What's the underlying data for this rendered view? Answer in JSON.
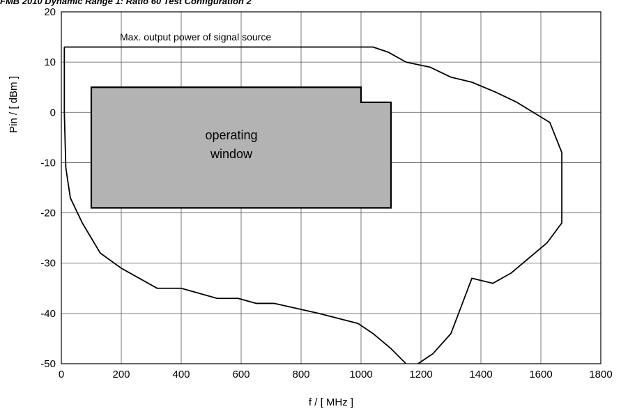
{
  "chart_data": {
    "type": "line",
    "title": "FMB 2010 Dynamic Range 1: Ratio 60 Test Configuration 2",
    "xlabel": "f / [ MHz ]",
    "ylabel": "Pin / [ dBm ]",
    "xlim": [
      0,
      1800
    ],
    "ylim": [
      -50,
      20
    ],
    "xticks": [
      "0",
      "200",
      "400",
      "600",
      "800",
      "1000",
      "1200",
      "1400",
      "1600",
      "1800"
    ],
    "yticks": [
      "20",
      "10",
      "0",
      "-10",
      "-20",
      "-30",
      "-40",
      "-50"
    ],
    "grid": true,
    "series": [
      {
        "name": "",
        "points": [
          [
            10,
            13
          ],
          [
            1040,
            13
          ],
          [
            1090,
            12
          ],
          [
            1150,
            10
          ],
          [
            1230,
            9
          ],
          [
            1300,
            7
          ],
          [
            1370,
            6
          ],
          [
            1450,
            4
          ],
          [
            1520,
            2
          ],
          [
            1630,
            -2
          ],
          [
            1670,
            -8
          ],
          [
            1670,
            -22
          ],
          [
            1620,
            -26
          ],
          [
            1560,
            -29
          ],
          [
            1500,
            -32
          ],
          [
            1440,
            -34
          ],
          [
            1370,
            -33
          ],
          [
            1300,
            -44
          ],
          [
            1240,
            -48
          ],
          [
            1190,
            -50
          ]
        ]
      },
      {
        "name": "",
        "points": [
          [
            1150,
            -50
          ],
          [
            1100,
            -47
          ],
          [
            1040,
            -44
          ],
          [
            990,
            -42
          ],
          [
            860,
            -40
          ],
          [
            710,
            -38
          ],
          [
            650,
            -38
          ],
          [
            590,
            -37
          ],
          [
            520,
            -37
          ],
          [
            400,
            -35
          ],
          [
            320,
            -35
          ],
          [
            200,
            -31
          ],
          [
            130,
            -28
          ],
          [
            70,
            -22
          ],
          [
            30,
            -17
          ],
          [
            15,
            -11
          ],
          [
            10,
            0
          ],
          [
            10,
            13
          ]
        ]
      }
    ],
    "operating_window": {
      "points": [
        [
          100,
          5
        ],
        [
          1000,
          5
        ],
        [
          1000,
          2
        ],
        [
          1100,
          2
        ],
        [
          1100,
          -19
        ],
        [
          100,
          -19
        ]
      ],
      "label_line1": "operating",
      "label_line2": "window",
      "fill": "#b3b3b3"
    },
    "annotation": "Max. output power of signal source"
  }
}
